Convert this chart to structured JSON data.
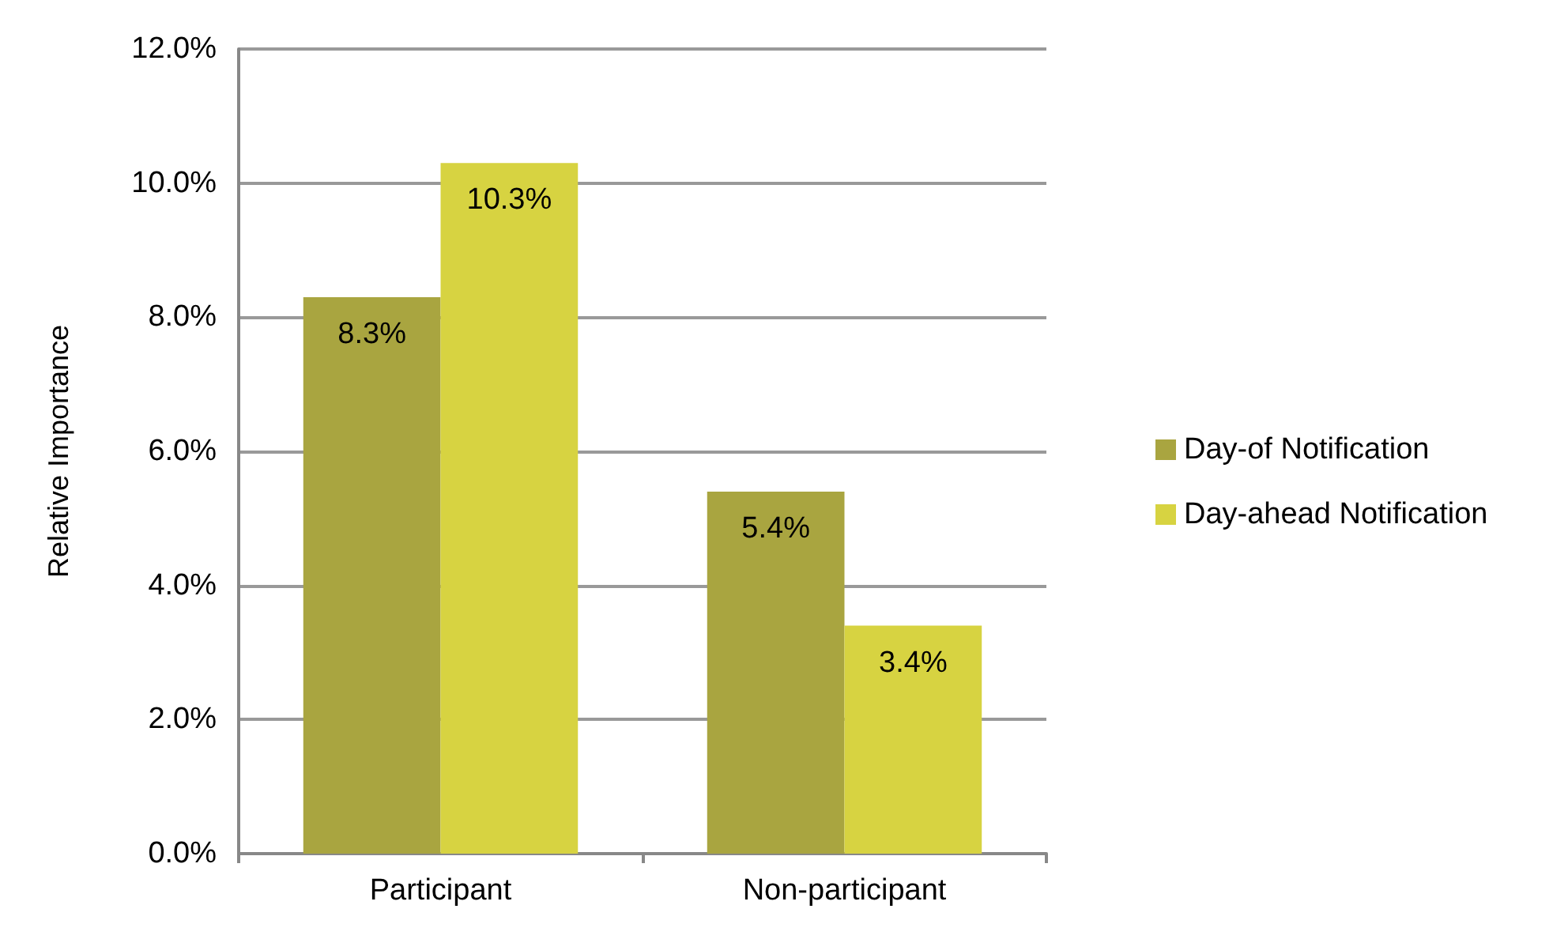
{
  "chart_data": {
    "type": "bar",
    "ylabel": "Relative Importance",
    "categories": [
      "Participant",
      "Non-participant"
    ],
    "series": [
      {
        "name": "Day-of Notification",
        "color": "#a9a540",
        "values": [
          8.3,
          5.4
        ],
        "value_labels": [
          "8.3%",
          "5.4%"
        ]
      },
      {
        "name": "Day-ahead Notification",
        "color": "#d7d341",
        "values": [
          10.3,
          3.4
        ],
        "value_labels": [
          "10.3%",
          "3.4%"
        ]
      }
    ],
    "ylim": [
      0,
      12
    ],
    "yticks": [
      {
        "value": 0,
        "label": "0.0%"
      },
      {
        "value": 2,
        "label": "2.0%"
      },
      {
        "value": 4,
        "label": "4.0%"
      },
      {
        "value": 6,
        "label": "6.0%"
      },
      {
        "value": 8,
        "label": "8.0%"
      },
      {
        "value": 10,
        "label": "10.0%"
      },
      {
        "value": 12,
        "label": "12.0%"
      }
    ],
    "grid": "y",
    "legend": "right"
  }
}
